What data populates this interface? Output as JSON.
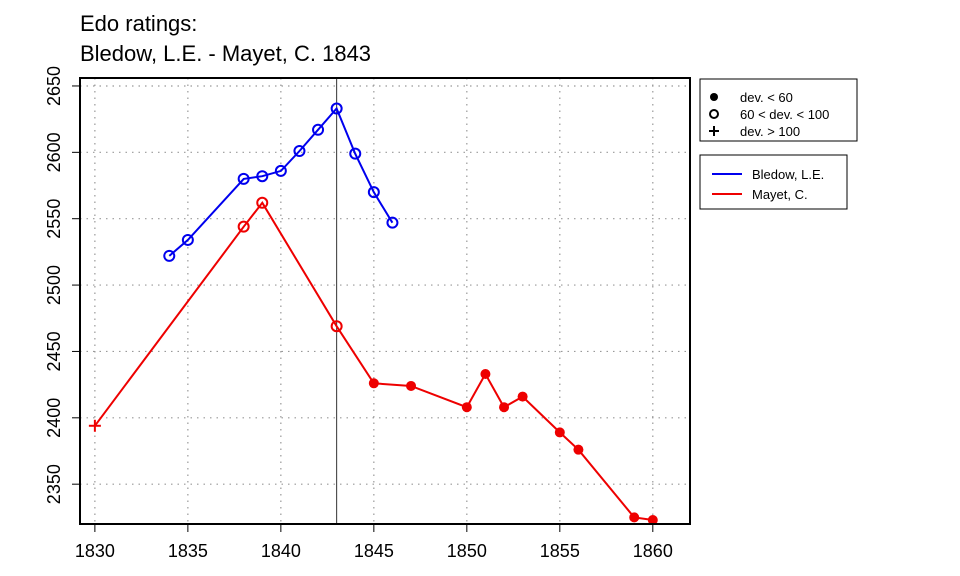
{
  "chart_data": {
    "type": "line",
    "title": [
      "Edo ratings:",
      "Bledow, L.E. - Mayet, C. 1843"
    ],
    "xlabel": "",
    "ylabel": "",
    "xlim": [
      1829.2,
      1862.0
    ],
    "ylim": [
      2320,
      2656
    ],
    "x_ticks": [
      1830,
      1835,
      1840,
      1845,
      1850,
      1855,
      1860
    ],
    "y_ticks": [
      2350,
      2400,
      2450,
      2500,
      2550,
      2600,
      2650
    ],
    "grid": true,
    "vertical_marker_x": 1843,
    "marker_legend": {
      "placement": "top-right",
      "entries": [
        {
          "symbol": "filled-circle",
          "label": "dev. < 60"
        },
        {
          "symbol": "open-circle",
          "label": "60 < dev. < 100"
        },
        {
          "symbol": "plus",
          "label": "dev. > 100"
        }
      ]
    },
    "series": [
      {
        "name": "Bledow, L.E.",
        "color": "#0000ee",
        "points": [
          {
            "x": 1834,
            "y": 2522,
            "marker": "open-circle"
          },
          {
            "x": 1835,
            "y": 2534,
            "marker": "open-circle"
          },
          {
            "x": 1838,
            "y": 2580,
            "marker": "open-circle"
          },
          {
            "x": 1839,
            "y": 2582,
            "marker": "open-circle"
          },
          {
            "x": 1840,
            "y": 2586,
            "marker": "open-circle"
          },
          {
            "x": 1841,
            "y": 2601,
            "marker": "open-circle"
          },
          {
            "x": 1842,
            "y": 2617,
            "marker": "open-circle"
          },
          {
            "x": 1843,
            "y": 2633,
            "marker": "open-circle"
          },
          {
            "x": 1844,
            "y": 2599,
            "marker": "open-circle"
          },
          {
            "x": 1845,
            "y": 2570,
            "marker": "open-circle"
          },
          {
            "x": 1846,
            "y": 2547,
            "marker": "open-circle"
          }
        ]
      },
      {
        "name": "Mayet, C.",
        "color": "#ee0000",
        "points": [
          {
            "x": 1830,
            "y": 2394,
            "marker": "plus"
          },
          {
            "x": 1838,
            "y": 2544,
            "marker": "open-circle"
          },
          {
            "x": 1839,
            "y": 2562,
            "marker": "open-circle"
          },
          {
            "x": 1843,
            "y": 2469,
            "marker": "open-circle"
          },
          {
            "x": 1845,
            "y": 2426,
            "marker": "filled-circle"
          },
          {
            "x": 1847,
            "y": 2424,
            "marker": "filled-circle"
          },
          {
            "x": 1850,
            "y": 2408,
            "marker": "filled-circle"
          },
          {
            "x": 1851,
            "y": 2433,
            "marker": "filled-circle"
          },
          {
            "x": 1852,
            "y": 2408,
            "marker": "filled-circle"
          },
          {
            "x": 1853,
            "y": 2416,
            "marker": "filled-circle"
          },
          {
            "x": 1855,
            "y": 2389,
            "marker": "filled-circle"
          },
          {
            "x": 1856,
            "y": 2376,
            "marker": "filled-circle"
          },
          {
            "x": 1859,
            "y": 2325,
            "marker": "filled-circle"
          },
          {
            "x": 1860,
            "y": 2323,
            "marker": "filled-circle"
          }
        ]
      }
    ]
  }
}
